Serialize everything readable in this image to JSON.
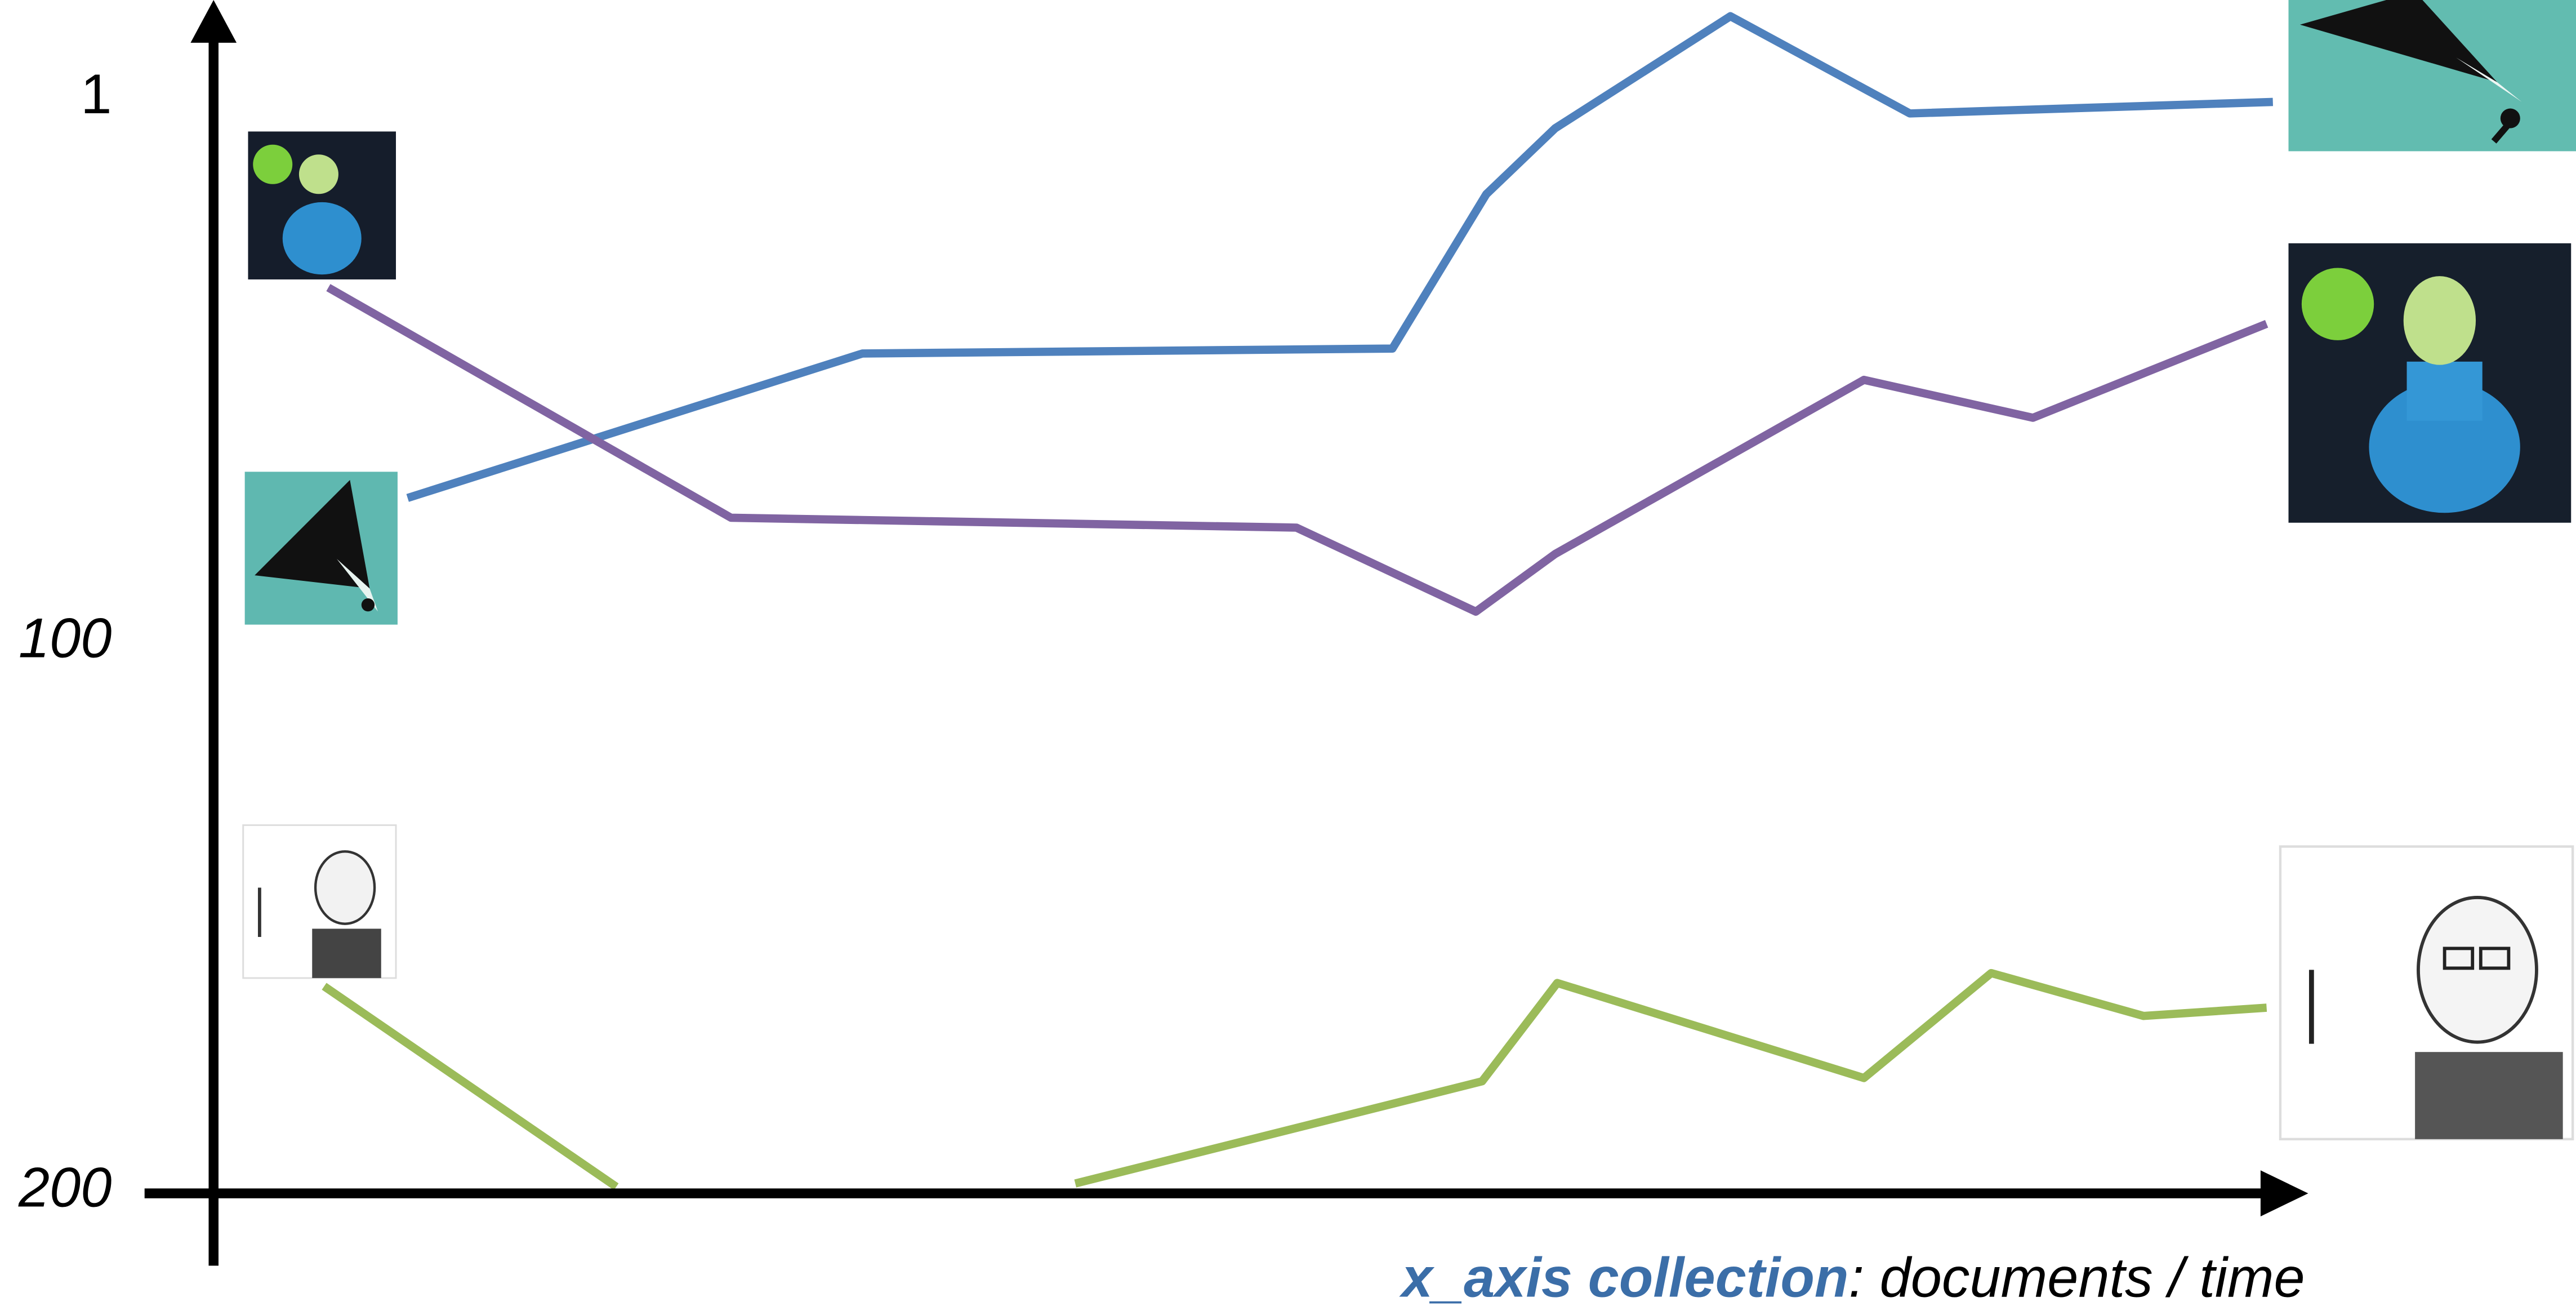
{
  "chart_data": {
    "type": "line",
    "xlabel_emphasis": "x_axis collection",
    "xlabel": ": documents / time",
    "xlim": [
      0,
      100
    ],
    "ylim": [
      1,
      200
    ],
    "yticks": [
      1,
      100,
      200
    ],
    "inverted_y": true,
    "grid": false,
    "series": [
      {
        "color": "#4f81bd",
        "x": [
          9.3,
          31.1,
          56.5,
          61.0,
          64.3,
          72.7,
          81.3,
          98.7
        ],
        "values": [
          73.7,
          47.4,
          46.5,
          18.4,
          6.4,
          -14.0,
          3.7,
          1.6
        ]
      },
      {
        "color": "#8064a2",
        "x": [
          5.5,
          24.8,
          51.9,
          60.5,
          64.3,
          79.1,
          87.2,
          98.4
        ],
        "values": [
          35.4,
          77.3,
          79.1,
          94.4,
          83.9,
          52.2,
          59.1,
          42.0
        ]
      },
      {
        "color": "#9bbb59",
        "x": [
          5.3,
          19.3,
          null,
          41.3,
          60.8,
          64.4,
          79.1,
          85.2,
          92.5,
          98.4
        ],
        "values": [
          162.6,
          199.1,
          null,
          198.5,
          179.9,
          162.0,
          179.3,
          160.2,
          168.0,
          166.5
        ]
      }
    ]
  }
}
